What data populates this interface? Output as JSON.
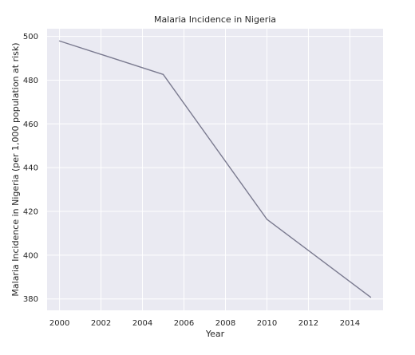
{
  "chart_data": {
    "type": "line",
    "title": "Malaria Incidence in Nigeria",
    "xlabel": "Year",
    "ylabel": "Malaria Incidence in Nigeria (per 1,000 population at risk)",
    "x": [
      2000,
      2005,
      2010,
      2015
    ],
    "series": [
      {
        "values": [
          497.9,
          482.6,
          416.4,
          380.8
        ],
        "color": "#7a7a8f"
      }
    ],
    "xlim": [
      1999.4,
      2015.6
    ],
    "ylim": [
      374.8,
      503.5
    ],
    "x_ticks": [
      2000,
      2002,
      2004,
      2006,
      2008,
      2010,
      2012,
      2014
    ],
    "y_ticks": [
      380,
      400,
      420,
      440,
      460,
      480,
      500
    ],
    "grid": true,
    "style": {
      "plot_background": "#eaeaf2",
      "grid_color": "#ffffff",
      "text_color": "#262626"
    }
  }
}
